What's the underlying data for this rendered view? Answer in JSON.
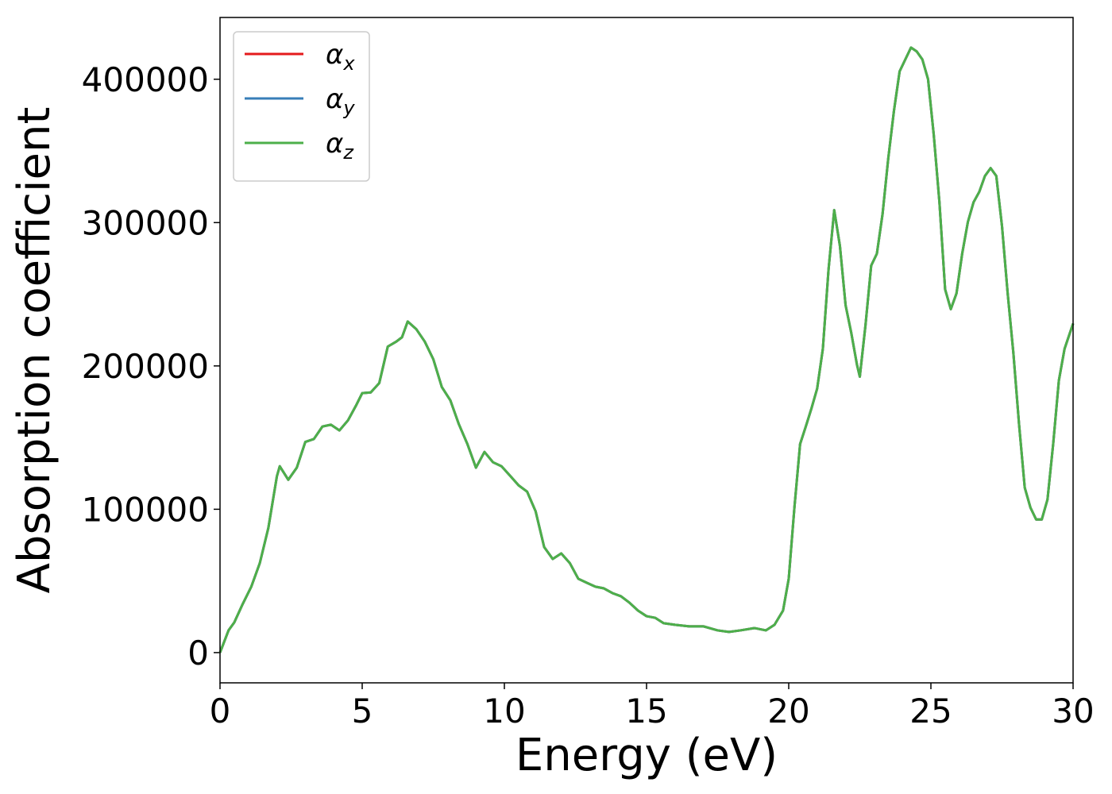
{
  "chart_data": {
    "type": "line",
    "xlabel": "Energy (eV)",
    "ylabel": "Absorption coefficient",
    "xlim": [
      0,
      30
    ],
    "xticks": [
      0,
      5,
      10,
      15,
      20,
      25,
      30
    ],
    "ylim": [
      -21100,
      443100
    ],
    "yticks": [
      0,
      100000,
      200000,
      300000,
      400000
    ],
    "legend": "upper left",
    "grid": false,
    "x": [
      0,
      0.3,
      0.5,
      0.8,
      1.1,
      1.4,
      1.7,
      2.0,
      2.1,
      2.4,
      2.7,
      3.0,
      3.3,
      3.6,
      3.9,
      4.2,
      4.5,
      4.8,
      5.0,
      5.3,
      5.6,
      5.9,
      6.2,
      6.4,
      6.6,
      6.9,
      7.2,
      7.5,
      7.8,
      8.1,
      8.4,
      8.7,
      9.0,
      9.3,
      9.6,
      9.9,
      10.2,
      10.5,
      10.8,
      11.1,
      11.4,
      11.7,
      12.0,
      12.3,
      12.6,
      12.9,
      13.2,
      13.5,
      13.8,
      14.1,
      14.4,
      14.7,
      15.0,
      15.3,
      15.6,
      16.0,
      16.5,
      17.0,
      17.5,
      17.9,
      18.3,
      18.8,
      19.2,
      19.5,
      19.8,
      20.0,
      20.2,
      20.4,
      20.6,
      20.8,
      21.0,
      21.2,
      21.4,
      21.6,
      21.8,
      22.0,
      22.2,
      22.4,
      22.5,
      22.7,
      22.9,
      23.1,
      23.3,
      23.5,
      23.7,
      23.9,
      24.1,
      24.3,
      24.5,
      24.7,
      24.9,
      25.1,
      25.3,
      25.5,
      25.7,
      25.9,
      26.1,
      26.3,
      26.5,
      26.7,
      26.9,
      27.1,
      27.3,
      27.5,
      27.7,
      27.9,
      28.1,
      28.3,
      28.5,
      28.7,
      28.9,
      29.1,
      29.3,
      29.5,
      29.7,
      30.0
    ],
    "series": [
      {
        "name": "αx",
        "color": "#e41a1c",
        "values": [
          0,
          15500,
          21000,
          34000,
          46000,
          62500,
          87000,
          123000,
          130000,
          120600,
          129000,
          147000,
          149000,
          157700,
          159000,
          155000,
          162000,
          173000,
          181000,
          181500,
          188000,
          213500,
          217000,
          220000,
          231000,
          225700,
          217000,
          204700,
          185300,
          176000,
          159300,
          145500,
          129000,
          140000,
          132800,
          130000,
          123400,
          116700,
          112300,
          98500,
          73600,
          65300,
          69200,
          62500,
          51500,
          48700,
          46000,
          44800,
          41500,
          39300,
          34800,
          29300,
          25400,
          24300,
          20500,
          19400,
          18300,
          18300,
          15500,
          14400,
          15500,
          17100,
          15500,
          19400,
          29300,
          51500,
          101200,
          145500,
          157700,
          170400,
          184200,
          211900,
          267200,
          308700,
          283800,
          242300,
          223000,
          200800,
          192500,
          228500,
          270000,
          278300,
          306000,
          344700,
          377900,
          405500,
          413800,
          422100,
          419400,
          413800,
          400000,
          361300,
          314200,
          253400,
          239600,
          250600,
          278300,
          300400,
          314200,
          321400,
          332500,
          338000,
          332500,
          297600,
          250600,
          209100,
          159300,
          115100,
          101200,
          92900,
          92900,
          106800,
          145500,
          189800,
          211900,
          229600
        ]
      },
      {
        "name": "αy",
        "color": "#377eb8",
        "values": [
          0,
          15500,
          21000,
          34000,
          46000,
          62500,
          87000,
          123000,
          130000,
          120600,
          129000,
          147000,
          149000,
          157700,
          159000,
          155000,
          162000,
          173000,
          181000,
          181500,
          188000,
          213500,
          217000,
          220000,
          231000,
          225700,
          217000,
          204700,
          185300,
          176000,
          159300,
          145500,
          129000,
          140000,
          132800,
          130000,
          123400,
          116700,
          112300,
          98500,
          73600,
          65300,
          69200,
          62500,
          51500,
          48700,
          46000,
          44800,
          41500,
          39300,
          34800,
          29300,
          25400,
          24300,
          20500,
          19400,
          18300,
          18300,
          15500,
          14400,
          15500,
          17100,
          15500,
          19400,
          29300,
          51500,
          101200,
          145500,
          157700,
          170400,
          184200,
          211900,
          267200,
          308700,
          283800,
          242300,
          223000,
          200800,
          192500,
          228500,
          270000,
          278300,
          306000,
          344700,
          377900,
          405500,
          413800,
          422100,
          419400,
          413800,
          400000,
          361300,
          314200,
          253400,
          239600,
          250600,
          278300,
          300400,
          314200,
          321400,
          332500,
          338000,
          332500,
          297600,
          250600,
          209100,
          159300,
          115100,
          101200,
          92900,
          92900,
          106800,
          145500,
          189800,
          211900,
          229600
        ]
      },
      {
        "name": "αz",
        "color": "#4daf4a",
        "values": [
          0,
          15500,
          21000,
          34000,
          46000,
          62500,
          87000,
          123000,
          130000,
          120600,
          129000,
          147000,
          149000,
          157700,
          159000,
          155000,
          162000,
          173000,
          181000,
          181500,
          188000,
          213500,
          217000,
          220000,
          231000,
          225700,
          217000,
          204700,
          185300,
          176000,
          159300,
          145500,
          129000,
          140000,
          132800,
          130000,
          123400,
          116700,
          112300,
          98500,
          73600,
          65300,
          69200,
          62500,
          51500,
          48700,
          46000,
          44800,
          41500,
          39300,
          34800,
          29300,
          25400,
          24300,
          20500,
          19400,
          18300,
          18300,
          15500,
          14400,
          15500,
          17100,
          15500,
          19400,
          29300,
          51500,
          101200,
          145500,
          157700,
          170400,
          184200,
          211900,
          267200,
          308700,
          283800,
          242300,
          223000,
          200800,
          192500,
          228500,
          270000,
          278300,
          306000,
          344700,
          377900,
          405500,
          413800,
          422100,
          419400,
          413800,
          400000,
          361300,
          314200,
          253400,
          239600,
          250600,
          278300,
          300400,
          314200,
          321400,
          332500,
          338000,
          332500,
          297600,
          250600,
          209100,
          159300,
          115100,
          101200,
          92900,
          92900,
          106800,
          145500,
          189800,
          211900,
          229600
        ]
      }
    ]
  }
}
